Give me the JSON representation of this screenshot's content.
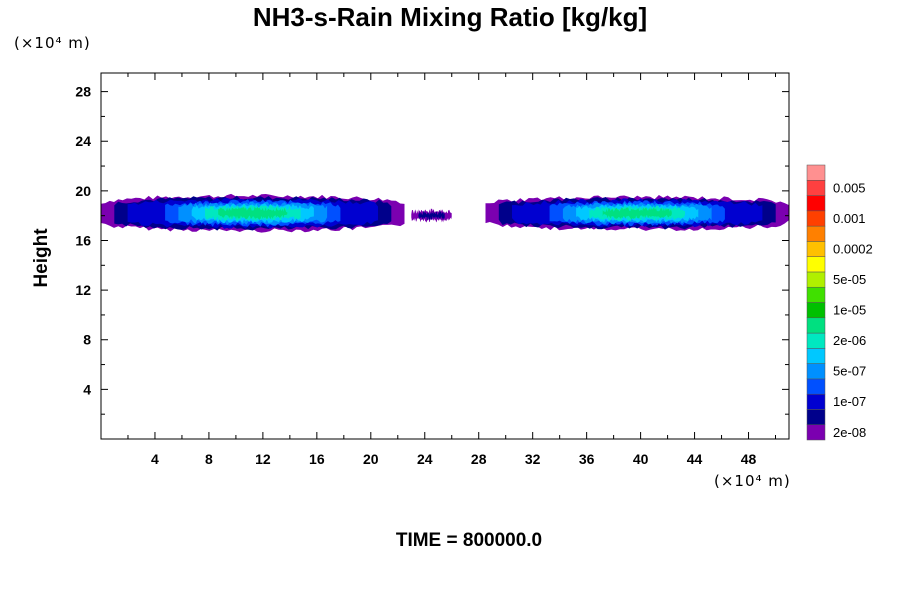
{
  "chart_data": {
    "type": "heatmap",
    "title": "NH3-s-Rain Mixing Ratio [kg/kg]",
    "ylabel": "Height",
    "xlabel": "",
    "x_unit": "(×10⁴ m)",
    "y_unit": "(×10⁴ m)",
    "footer": "TIME = 800000.0",
    "xlim": [
      0,
      51
    ],
    "ylim": [
      0,
      29.5
    ],
    "x_ticks": [
      4,
      8,
      12,
      16,
      20,
      24,
      28,
      32,
      36,
      40,
      44,
      48
    ],
    "x_tick_labels": [
      "4",
      "8",
      "12",
      "16",
      "20",
      "24",
      "28",
      "32",
      "36",
      "40",
      "44",
      "48"
    ],
    "y_ticks": [
      4,
      8,
      12,
      16,
      20,
      24,
      28
    ],
    "y_tick_labels": [
      "4",
      "8",
      "12",
      "16",
      "20",
      "24",
      "28"
    ],
    "colorbar": {
      "colors": [
        "#7b00b0",
        "#00008b",
        "#0000d0",
        "#0050ff",
        "#0090ff",
        "#00c8ff",
        "#00e8c0",
        "#00e080",
        "#00c000",
        "#40e000",
        "#b0f000",
        "#ffff00",
        "#ffc000",
        "#ff8000",
        "#ff4000",
        "#ff0000",
        "#ff4040",
        "#ff9090"
      ],
      "labels": [
        "2e-08",
        "1e-07",
        "5e-07",
        "2e-06",
        "1e-05",
        "5e-05",
        "0.0002",
        "0.001",
        "0.005"
      ]
    },
    "clouds": [
      {
        "x": [
          0,
          22.5
        ],
        "y_center": 18.2,
        "thickness": 1.4,
        "peak_level": 7
      },
      {
        "x": [
          23,
          26
        ],
        "y_center": 18.0,
        "thickness": 0.4,
        "peak_level": 1
      },
      {
        "x": [
          28.5,
          51
        ],
        "y_center": 18.2,
        "thickness": 1.3,
        "peak_level": 7
      }
    ]
  }
}
